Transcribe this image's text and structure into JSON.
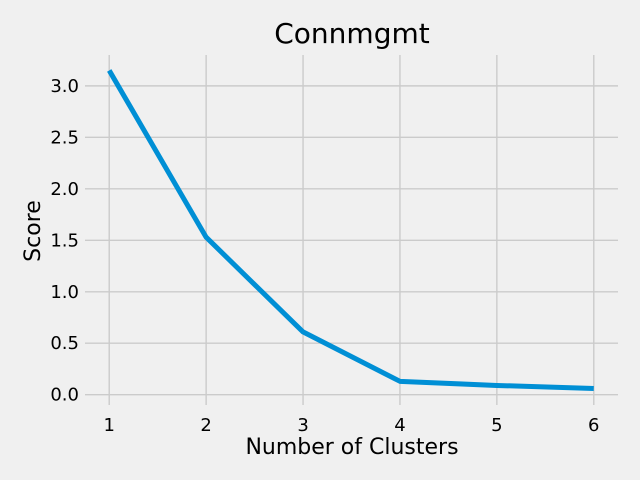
{
  "chart_data": {
    "type": "line",
    "title": "Connmgmt",
    "xlabel": "Number of Clusters",
    "ylabel": "Score",
    "x": [
      1,
      2,
      3,
      4,
      5,
      6
    ],
    "series": [
      {
        "values": [
          3.15,
          1.53,
          0.61,
          0.13,
          0.09,
          0.06
        ],
        "color": "#008fd5"
      }
    ],
    "xticks": [
      "1",
      "2",
      "3",
      "4",
      "5",
      "6"
    ],
    "yticks": [
      "0.0",
      "0.5",
      "1.0",
      "1.5",
      "2.0",
      "2.5",
      "3.0"
    ],
    "ytick_values": [
      0,
      0.5,
      1.0,
      1.5,
      2.0,
      2.5,
      3.0
    ],
    "xlim": [
      0.75,
      6.25
    ],
    "ylim": [
      -0.1,
      3.3
    ],
    "grid": true,
    "background_color": "#f0f0f0",
    "grid_color": "#cbcbcb"
  }
}
